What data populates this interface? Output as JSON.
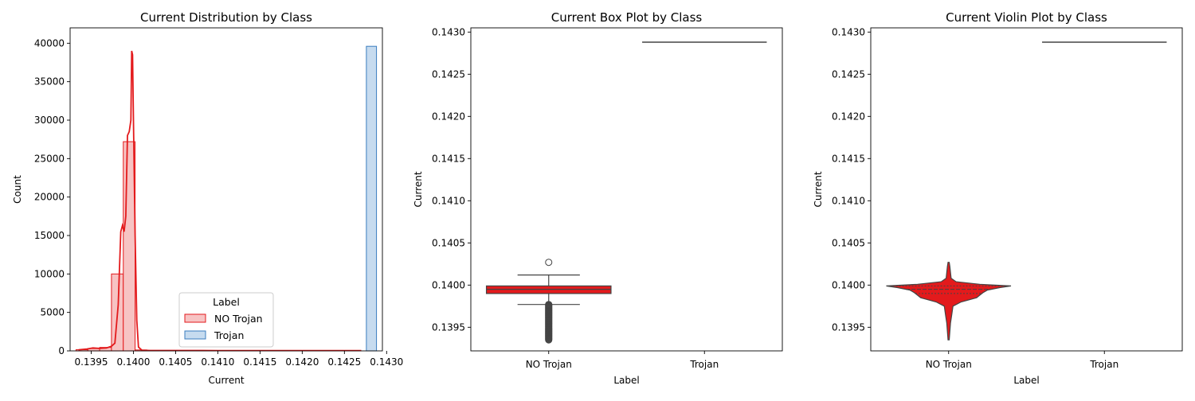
{
  "colors": {
    "no_trojan": "#e31a1c",
    "no_trojan_fill": "#f7c3c3",
    "trojan": "#3a7dbf",
    "trojan_fill": "#c6dbef",
    "box_edge": "#444444"
  },
  "chart_data": [
    {
      "type": "histogram",
      "title": "Current Distribution by Class",
      "xlabel": "Current",
      "ylabel": "Count",
      "xlim": [
        0.13925,
        0.14295
      ],
      "ylim": [
        0,
        42000
      ],
      "xticks": [
        "0.1395",
        "0.1400",
        "0.1405",
        "0.1410",
        "0.1415",
        "0.1420",
        "0.1425",
        "0.1430"
      ],
      "yticks": [
        "0",
        "5000",
        "10000",
        "15000",
        "20000",
        "25000",
        "30000",
        "35000",
        "40000"
      ],
      "legend": {
        "title": "Label",
        "position": "lower-center",
        "entries": [
          "NO Trojan",
          "Trojan"
        ]
      },
      "series": [
        {
          "name": "NO Trojan",
          "bins": [
            {
              "x0": 0.13932,
              "x1": 0.13946,
              "count": 150
            },
            {
              "x0": 0.13946,
              "x1": 0.1396,
              "count": 300
            },
            {
              "x0": 0.1396,
              "x1": 0.13974,
              "count": 450
            },
            {
              "x0": 0.13974,
              "x1": 0.13988,
              "count": 10000
            },
            {
              "x0": 0.13988,
              "x1": 0.14002,
              "count": 27200
            },
            {
              "x0": 0.14002,
              "x1": 0.14016,
              "count": 120
            },
            {
              "x0": 0.14016,
              "x1": 0.1403,
              "count": 20
            }
          ],
          "kde": [
            [
              0.13935,
              150
            ],
            [
              0.13945,
              250
            ],
            [
              0.13952,
              380
            ],
            [
              0.1396,
              320
            ],
            [
              0.13968,
              380
            ],
            [
              0.13974,
              600
            ],
            [
              0.13978,
              1000
            ],
            [
              0.13982,
              6000
            ],
            [
              0.13985,
              15500
            ],
            [
              0.13987,
              16300
            ],
            [
              0.13989,
              15500
            ],
            [
              0.13991,
              17500
            ],
            [
              0.13993,
              28000
            ],
            [
              0.13995,
              28500
            ],
            [
              0.13997,
              30000
            ],
            [
              0.13998,
              39000
            ],
            [
              0.13999,
              38500
            ],
            [
              0.14,
              30000
            ],
            [
              0.14002,
              15000
            ],
            [
              0.14004,
              4000
            ],
            [
              0.14006,
              500
            ],
            [
              0.1401,
              80
            ],
            [
              0.1402,
              50
            ],
            [
              0.141,
              40
            ],
            [
              0.142,
              40
            ],
            [
              0.1427,
              40
            ]
          ]
        },
        {
          "name": "Trojan",
          "bins": [
            {
              "x0": 0.14276,
              "x1": 0.14288,
              "count": 39600
            }
          ]
        }
      ]
    },
    {
      "type": "box",
      "title": "Current Box Plot by Class",
      "xlabel": "Label",
      "ylabel": "Current",
      "categories": [
        "NO Trojan",
        "Trojan"
      ],
      "ylim": [
        0.13922,
        0.14305
      ],
      "yticks": [
        "0.1395",
        "0.1400",
        "0.1405",
        "0.1410",
        "0.1415",
        "0.1420",
        "0.1425",
        "0.1430"
      ],
      "boxes": [
        {
          "name": "NO Trojan",
          "q1": 0.1399,
          "median": 0.13995,
          "q3": 0.13999,
          "whisker_low": 0.13977,
          "whisker_high": 0.14012,
          "outliers_high": [
            0.14027
          ],
          "outliers_low_range": [
            0.13935,
            0.13977
          ]
        },
        {
          "name": "Trojan",
          "q1": 0.14288,
          "median": 0.14288,
          "q3": 0.14288,
          "whisker_low": 0.14288,
          "whisker_high": 0.14288
        }
      ]
    },
    {
      "type": "violin",
      "title": "Current Violin Plot by Class",
      "xlabel": "Label",
      "ylabel": "Current",
      "categories": [
        "NO Trojan",
        "Trojan"
      ],
      "ylim": [
        0.13922,
        0.14305
      ],
      "yticks": [
        "0.1395",
        "0.1400",
        "0.1405",
        "0.1410",
        "0.1415",
        "0.1420",
        "0.1425",
        "0.1430"
      ],
      "violins": [
        {
          "name": "NO Trojan",
          "quartiles": [
            0.1399,
            0.13995,
            0.13999
          ],
          "density": [
            [
              0.13935,
              0.01
            ],
            [
              0.13945,
              0.02
            ],
            [
              0.13955,
              0.03
            ],
            [
              0.13965,
              0.05
            ],
            [
              0.13975,
              0.07
            ],
            [
              0.1398,
              0.2
            ],
            [
              0.13985,
              0.45
            ],
            [
              0.13988,
              0.5
            ],
            [
              0.13991,
              0.55
            ],
            [
              0.13994,
              0.62
            ],
            [
              0.13997,
              0.82
            ],
            [
              0.13999,
              1.0
            ],
            [
              0.14001,
              0.5
            ],
            [
              0.14004,
              0.12
            ],
            [
              0.14008,
              0.04
            ],
            [
              0.14015,
              0.03
            ],
            [
              0.14022,
              0.02
            ],
            [
              0.14027,
              0.01
            ]
          ]
        },
        {
          "name": "Trojan",
          "value": 0.14288
        }
      ]
    }
  ]
}
